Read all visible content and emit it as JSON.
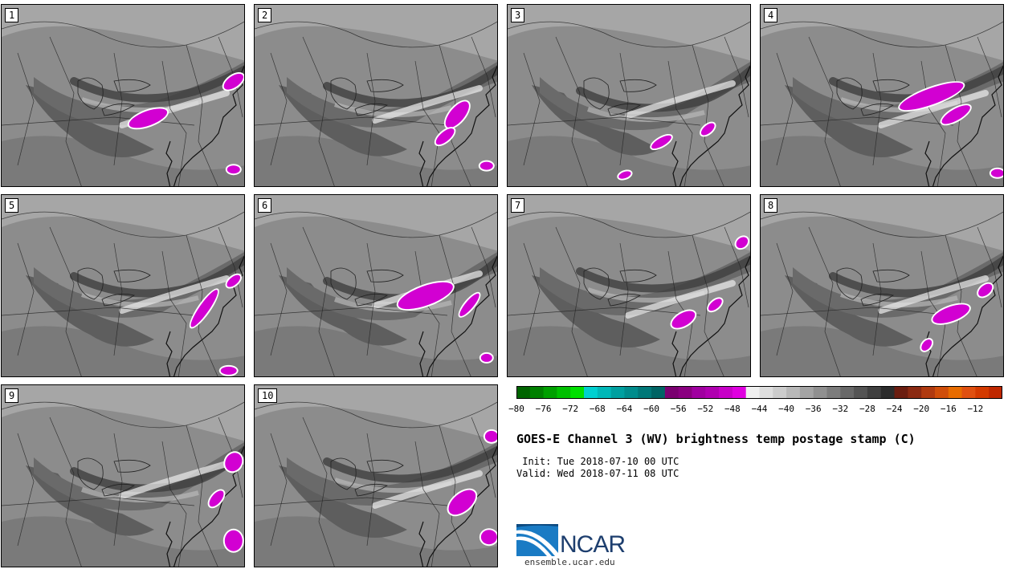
{
  "panels": [
    {
      "label": "1",
      "blobs": [
        [
          0.95,
          0.42,
          14,
          7,
          -35
        ],
        [
          0.95,
          0.9,
          8,
          5,
          0
        ],
        [
          0.6,
          0.62,
          25,
          9,
          -20
        ]
      ]
    },
    {
      "label": "2",
      "blobs": [
        [
          0.83,
          0.6,
          20,
          9,
          -50
        ],
        [
          0.78,
          0.72,
          14,
          6,
          -40
        ],
        [
          0.95,
          0.88,
          8,
          5,
          0
        ]
      ]
    },
    {
      "label": "3",
      "blobs": [
        [
          0.63,
          0.75,
          14,
          5,
          -30
        ],
        [
          0.82,
          0.68,
          10,
          5,
          -40
        ],
        [
          0.48,
          0.93,
          8,
          4,
          -20
        ]
      ]
    },
    {
      "label": "4",
      "blobs": [
        [
          0.7,
          0.5,
          42,
          10,
          -20
        ],
        [
          0.8,
          0.6,
          20,
          7,
          -30
        ],
        [
          0.97,
          0.92,
          8,
          5,
          0
        ]
      ]
    },
    {
      "label": "5",
      "blobs": [
        [
          0.83,
          0.62,
          28,
          6,
          -55
        ],
        [
          0.95,
          0.47,
          10,
          5,
          -40
        ],
        [
          0.93,
          0.96,
          10,
          5,
          0
        ]
      ]
    },
    {
      "label": "6",
      "blobs": [
        [
          0.7,
          0.55,
          36,
          12,
          -20
        ],
        [
          0.88,
          0.6,
          18,
          5,
          -50
        ],
        [
          0.95,
          0.89,
          7,
          5,
          0
        ]
      ]
    },
    {
      "label": "7",
      "blobs": [
        [
          0.72,
          0.68,
          16,
          8,
          -30
        ],
        [
          0.96,
          0.26,
          8,
          6,
          -40
        ],
        [
          0.85,
          0.6,
          10,
          5,
          -40
        ]
      ]
    },
    {
      "label": "8",
      "blobs": [
        [
          0.78,
          0.65,
          24,
          9,
          -20
        ],
        [
          0.92,
          0.52,
          10,
          6,
          -40
        ],
        [
          0.68,
          0.82,
          8,
          5,
          -50
        ]
      ]
    },
    {
      "label": "9",
      "blobs": [
        [
          0.95,
          0.42,
          12,
          10,
          -60
        ],
        [
          0.88,
          0.62,
          12,
          6,
          -50
        ],
        [
          0.95,
          0.85,
          11,
          13,
          0
        ]
      ]
    },
    {
      "label": "10",
      "blobs": [
        [
          0.85,
          0.64,
          20,
          11,
          -40
        ],
        [
          0.97,
          0.28,
          8,
          7,
          0
        ],
        [
          0.96,
          0.83,
          10,
          9,
          0
        ]
      ]
    }
  ],
  "colorbar": {
    "colors": [
      "#006400",
      "#008000",
      "#00a000",
      "#00c000",
      "#00e000",
      "#00d0d0",
      "#00b8b8",
      "#00a0a0",
      "#008c8c",
      "#007878",
      "#006464",
      "#7a0070",
      "#8a0080",
      "#a000a0",
      "#b000b0",
      "#c800c8",
      "#e000e0",
      "#f0f0f0",
      "#dedede",
      "#cccccc",
      "#b8b8b8",
      "#a4a4a4",
      "#909090",
      "#7c7c7c",
      "#686868",
      "#545454",
      "#404040",
      "#2c2c2c",
      "#6b1d10",
      "#8b2a12",
      "#b03a10",
      "#d04e0a",
      "#e86c00",
      "#e05010",
      "#d43a00",
      "#c02800"
    ],
    "ticks": [
      "−80",
      "−76",
      "−72",
      "−68",
      "−64",
      "−60",
      "−56",
      "−52",
      "−48",
      "−44",
      "−40",
      "−36",
      "−32",
      "−28",
      "−24",
      "−20",
      "−16",
      "−12"
    ]
  },
  "title": "GOES-E Channel 3 (WV) brightness temp postage stamp (C)",
  "init": " Init: Tue 2018-07-10 00 UTC",
  "valid": "Valid: Wed 2018-07-11 08 UTC",
  "logo_text": "NCAR",
  "website": "ensemble.ucar.edu"
}
